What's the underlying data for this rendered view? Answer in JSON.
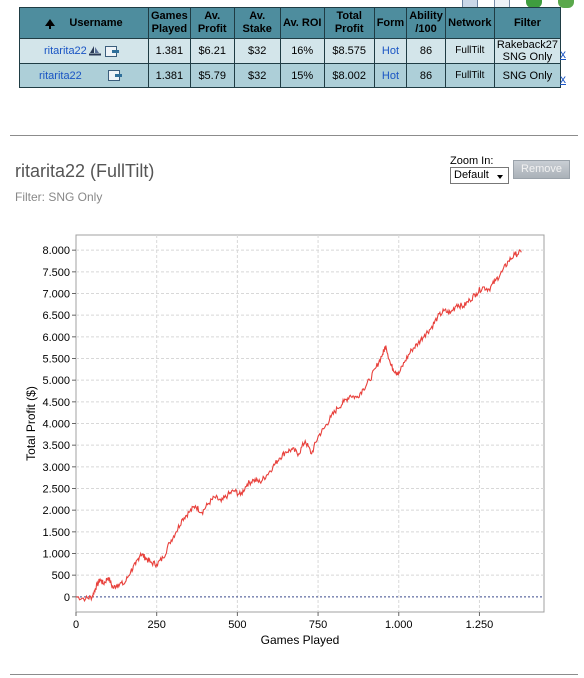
{
  "table": {
    "headers": [
      "Username",
      "Games Played",
      "Av. Profit",
      "Av. Stake",
      "Av. ROI",
      "Total Profit",
      "Form",
      "Ability /100",
      "Network",
      "Filter"
    ],
    "rows": [
      {
        "username": "ritarita22",
        "games": "1.381",
        "av_profit": "$6.21",
        "av_stake": "$32",
        "av_roi": "16%",
        "total_profit": "$8.575",
        "form": "Hot",
        "ability": "86",
        "network": "FullTilt",
        "filter_1": "Rakeback27",
        "filter_2": "SNG Only",
        "remove": "x"
      },
      {
        "username": "ritarita22",
        "games": "1.381",
        "av_profit": "$5.79",
        "av_stake": "$32",
        "av_roi": "15%",
        "total_profit": "$8.002",
        "form": "Hot",
        "ability": "86",
        "network": "FullTilt",
        "filter_1": "SNG Only",
        "filter_2": "",
        "remove": "x"
      }
    ]
  },
  "panel": {
    "title": "ritarita22 (FullTilt)",
    "filter": "Filter: SNG Only",
    "zoom_label": "Zoom In:",
    "zoom_value": "Default",
    "remove_label": "Remove"
  },
  "icons": [
    "table-icon",
    "window-icon",
    "refresh-icon",
    "export-icon"
  ],
  "chart_data": {
    "type": "line",
    "title": "",
    "xlabel": "Games Played",
    "ylabel": "Total Profit ($)",
    "xlim": [
      0,
      1450
    ],
    "ylim": [
      -350,
      8350
    ],
    "x_ticks": [
      0,
      250,
      500,
      750,
      1000,
      1250
    ],
    "x_tick_labels": [
      "0",
      "250",
      "500",
      "750",
      "1.000",
      "1.250"
    ],
    "y_ticks": [
      0,
      500,
      1000,
      1500,
      2000,
      2500,
      3000,
      3500,
      4000,
      4500,
      5000,
      5500,
      6000,
      6500,
      7000,
      7500,
      8000
    ],
    "y_tick_labels": [
      "0",
      "500",
      "1.000",
      "1.500",
      "2.000",
      "2.500",
      "3.000",
      "3.500",
      "4.000",
      "4.500",
      "5.000",
      "5.500",
      "6.000",
      "6.500",
      "7.000",
      "7.500",
      "8.000"
    ],
    "grid": true,
    "line_color": "#e8413c",
    "zero_line_color": "#3b4a8c",
    "series": [
      {
        "x": [
          0,
          30,
          50,
          60,
          75,
          85,
          100,
          115,
          130,
          150,
          170,
          185,
          200,
          215,
          230,
          250,
          270,
          290,
          310,
          330,
          350,
          370,
          390,
          410,
          430,
          450,
          470,
          490,
          510,
          530,
          550,
          570,
          590,
          610,
          630,
          650,
          670,
          690,
          710,
          730,
          750,
          770,
          790,
          810,
          830,
          850,
          870,
          890,
          910,
          930,
          950,
          960,
          975,
          990,
          1000,
          1020,
          1040,
          1060,
          1080,
          1100,
          1120,
          1140,
          1160,
          1180,
          1200,
          1220,
          1240,
          1260,
          1280,
          1300,
          1320,
          1340,
          1360,
          1380
        ],
        "y": [
          0,
          -40,
          0,
          200,
          400,
          300,
          450,
          200,
          300,
          300,
          600,
          750,
          1000,
          900,
          800,
          750,
          900,
          1250,
          1500,
          1800,
          1950,
          2100,
          1950,
          2150,
          2300,
          2200,
          2350,
          2450,
          2350,
          2600,
          2700,
          2650,
          2800,
          3000,
          3200,
          3350,
          3400,
          3300,
          3600,
          3300,
          3700,
          3900,
          4150,
          4350,
          4500,
          4650,
          4600,
          4800,
          5000,
          5300,
          5600,
          5800,
          5350,
          5200,
          5150,
          5450,
          5700,
          5850,
          6050,
          6200,
          6450,
          6600,
          6550,
          6750,
          6700,
          6850,
          7000,
          7150,
          7100,
          7300,
          7500,
          7750,
          7900,
          7950
        ]
      }
    ]
  }
}
